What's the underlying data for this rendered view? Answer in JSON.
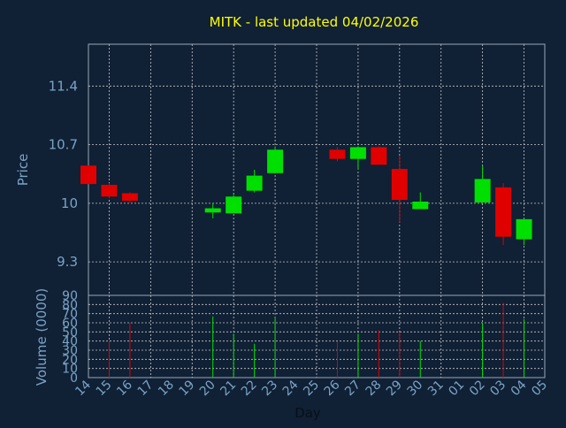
{
  "chart_data": [
    {
      "type": "candlestick",
      "title": "MITK - last updated 04/02/2026",
      "ylabel": "Price",
      "ylim": [
        8.9,
        11.9
      ],
      "y_ticks": [
        9.3,
        10,
        10.7,
        11.4
      ],
      "y_tick_labels": [
        "9.3",
        "10",
        "10.7",
        "11.4"
      ],
      "grid": true,
      "candles": [
        {
          "date": "14",
          "open": 10.45,
          "close": 10.23,
          "high": 10.45,
          "low": 10.23
        },
        {
          "date": "15",
          "open": 10.22,
          "close": 10.08,
          "high": 10.24,
          "low": 10.06
        },
        {
          "date": "16",
          "open": 10.12,
          "close": 10.03,
          "high": 10.13,
          "low": 10.01
        },
        {
          "date": "20",
          "open": 9.89,
          "close": 9.94,
          "high": 10.0,
          "low": 9.82
        },
        {
          "date": "21",
          "open": 9.88,
          "close": 10.08,
          "high": 10.1,
          "low": 9.88
        },
        {
          "date": "22",
          "open": 10.15,
          "close": 10.33,
          "high": 10.4,
          "low": 10.13
        },
        {
          "date": "23",
          "open": 10.36,
          "close": 10.64,
          "high": 10.68,
          "low": 10.36
        },
        {
          "date": "26",
          "open": 10.64,
          "close": 10.53,
          "high": 10.67,
          "low": 10.5
        },
        {
          "date": "27",
          "open": 10.53,
          "close": 10.67,
          "high": 10.68,
          "low": 10.4
        },
        {
          "date": "28",
          "open": 10.67,
          "close": 10.46,
          "high": 10.68,
          "low": 10.46
        },
        {
          "date": "29",
          "open": 10.41,
          "close": 10.04,
          "high": 10.57,
          "low": 9.77
        },
        {
          "date": "30",
          "open": 9.93,
          "close": 10.02,
          "high": 10.13,
          "low": 9.93
        },
        {
          "date": "02",
          "open": 10.01,
          "close": 10.29,
          "high": 10.45,
          "low": 10.01
        },
        {
          "date": "03",
          "open": 10.19,
          "close": 9.6,
          "high": 10.24,
          "low": 9.5
        },
        {
          "date": "04",
          "open": 9.57,
          "close": 9.81,
          "high": 9.82,
          "low": 9.5
        }
      ]
    },
    {
      "type": "bar",
      "ylabel": "Volume (0000)",
      "xlabel": "Day",
      "ylim": [
        0,
        90
      ],
      "y_tick_labels": [
        "0",
        "10",
        "20",
        "30",
        "40",
        "50",
        "60",
        "70",
        "80",
        "90"
      ],
      "categories": [
        "14",
        "15",
        "16",
        "17",
        "18",
        "19",
        "20",
        "21",
        "22",
        "23",
        "24",
        "25",
        "26",
        "27",
        "28",
        "29",
        "30",
        "31",
        "01",
        "02",
        "03",
        "04",
        "05"
      ],
      "volumes": [
        {
          "date": "15",
          "value": 40,
          "direction": "down"
        },
        {
          "date": "16",
          "value": 60,
          "direction": "down"
        },
        {
          "date": "20",
          "value": 67,
          "direction": "up"
        },
        {
          "date": "21",
          "value": 48,
          "direction": "up"
        },
        {
          "date": "22",
          "value": 37,
          "direction": "up"
        },
        {
          "date": "23",
          "value": 66,
          "direction": "up"
        },
        {
          "date": "26",
          "value": 39,
          "direction": "down"
        },
        {
          "date": "27",
          "value": 48,
          "direction": "up"
        },
        {
          "date": "28",
          "value": 52,
          "direction": "down"
        },
        {
          "date": "29",
          "value": 50,
          "direction": "down"
        },
        {
          "date": "30",
          "value": 40,
          "direction": "up"
        },
        {
          "date": "02",
          "value": 60,
          "direction": "up"
        },
        {
          "date": "03",
          "value": 82,
          "direction": "down"
        },
        {
          "date": "04",
          "value": 64,
          "direction": "up"
        }
      ]
    }
  ],
  "colors": {
    "background": "#102035",
    "up": "#00e000",
    "down": "#e00000",
    "title": "#ffff00",
    "axis_text": "#7aa4c4",
    "grid": "#c8c8c8",
    "frame": "#9aa8b8"
  }
}
